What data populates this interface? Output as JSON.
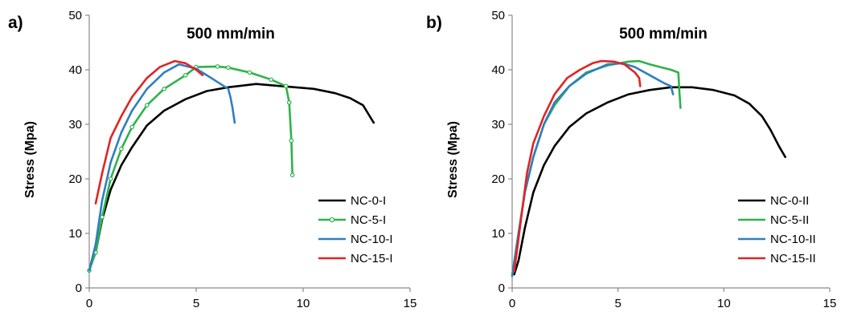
{
  "chart_data": [
    {
      "type": "line",
      "panel_label": "a)",
      "title": "500 mm/min",
      "xlabel": "",
      "ylabel": "Stress (Mpa)",
      "xlim": [
        0,
        15
      ],
      "ylim": [
        0,
        50
      ],
      "xticks": [
        0,
        5,
        10,
        15
      ],
      "yticks": [
        0,
        10,
        20,
        30,
        40,
        50
      ],
      "grid": false,
      "legend_position": "bottom-right",
      "series": [
        {
          "name": "NC-0-I",
          "color": "#000000",
          "marker": "none",
          "x": [
            0.3,
            0.6,
            1.0,
            1.5,
            2.0,
            2.7,
            3.5,
            4.5,
            5.5,
            6.5,
            7.8,
            9.0,
            10.5,
            11.5,
            12.2,
            12.8,
            13.3
          ],
          "y": [
            6.5,
            12.5,
            18,
            22.5,
            25.8,
            29.8,
            32.5,
            34.6,
            36.1,
            36.8,
            37.4,
            37.0,
            36.5,
            35.7,
            34.8,
            33.5,
            30.3
          ]
        },
        {
          "name": "NC-5-I",
          "color": "#2db34a",
          "marker": "circle",
          "x": [
            0.0,
            0.3,
            0.6,
            1.0,
            1.5,
            2.0,
            2.7,
            3.5,
            4.5,
            5.0,
            6.0,
            6.5,
            7.5,
            8.5,
            9.2,
            9.35,
            9.45,
            9.5
          ],
          "y": [
            3.2,
            6.5,
            13,
            20,
            25.5,
            29.5,
            33.5,
            36.5,
            39.0,
            40.5,
            40.6,
            40.4,
            39.5,
            38.2,
            37.0,
            34.0,
            27.0,
            20.7
          ]
        },
        {
          "name": "NC-10-I",
          "color": "#2e7fc0",
          "marker": "none",
          "x": [
            0.0,
            0.3,
            0.6,
            1.0,
            1.5,
            2.0,
            2.7,
            3.5,
            4.2,
            5.0,
            5.7,
            6.5,
            6.6,
            6.7,
            6.8
          ],
          "y": [
            3.2,
            8.0,
            16,
            23,
            28.5,
            32.5,
            36.5,
            39.5,
            41.0,
            40.2,
            38.5,
            36.5,
            35.0,
            33.0,
            30.3
          ]
        },
        {
          "name": "NC-15-I",
          "color": "#e02424",
          "marker": "none",
          "x": [
            0.3,
            0.6,
            1.0,
            1.5,
            2.0,
            2.7,
            3.3,
            4.0,
            4.5,
            5.0,
            5.3
          ],
          "y": [
            15.5,
            21,
            27.5,
            31.5,
            35.0,
            38.5,
            40.5,
            41.6,
            41.2,
            40.0,
            39.0
          ]
        }
      ]
    },
    {
      "type": "line",
      "panel_label": "b)",
      "title": "500 mm/min",
      "xlabel": "",
      "ylabel": "Stress (Mpa)",
      "xlim": [
        0,
        15
      ],
      "ylim": [
        0,
        50
      ],
      "xticks": [
        0,
        5,
        10,
        15
      ],
      "yticks": [
        0,
        10,
        20,
        30,
        40,
        50
      ],
      "grid": false,
      "legend_position": "bottom-right",
      "series": [
        {
          "name": "NC-0-II",
          "color": "#000000",
          "marker": "none",
          "x": [
            0.1,
            0.3,
            0.6,
            1.0,
            1.5,
            2.0,
            2.7,
            3.5,
            4.5,
            5.5,
            6.5,
            7.5,
            8.5,
            9.5,
            10.5,
            11.2,
            11.8,
            12.2,
            12.6,
            12.9
          ],
          "y": [
            2.5,
            5.0,
            11.0,
            17.5,
            22.5,
            26.0,
            29.5,
            32.0,
            34.0,
            35.5,
            36.3,
            36.8,
            36.8,
            36.3,
            35.3,
            33.8,
            31.5,
            29.0,
            26.0,
            24.0
          ]
        },
        {
          "name": "NC-5-II",
          "color": "#2db34a",
          "marker": "none",
          "x": [
            0.0,
            0.3,
            0.6,
            1.0,
            1.5,
            2.0,
            2.7,
            3.5,
            4.5,
            5.5,
            6.0,
            6.5,
            7.0,
            7.5,
            7.85,
            7.9,
            7.95
          ],
          "y": [
            2.2,
            10.0,
            17.5,
            24.0,
            30.0,
            33.5,
            37.0,
            39.5,
            40.8,
            41.5,
            41.6,
            41.0,
            40.5,
            40.0,
            39.5,
            36.0,
            33.0
          ]
        },
        {
          "name": "NC-10-II",
          "color": "#2e7fc0",
          "marker": "none",
          "x": [
            0.0,
            0.3,
            0.6,
            1.0,
            1.5,
            2.0,
            2.7,
            3.5,
            4.5,
            5.2,
            5.8,
            6.5,
            7.2,
            7.5,
            7.6
          ],
          "y": [
            2.2,
            10.0,
            17.5,
            24.0,
            30.0,
            34.0,
            37.0,
            39.3,
            41.0,
            41.2,
            40.5,
            39.0,
            37.5,
            37.0,
            35.5
          ]
        },
        {
          "name": "NC-15-II",
          "color": "#e02424",
          "marker": "none",
          "x": [
            0.1,
            0.4,
            0.7,
            1.0,
            1.5,
            2.0,
            2.6,
            3.2,
            3.8,
            4.2,
            4.8,
            5.3,
            5.8,
            6.0,
            6.05
          ],
          "y": [
            3.0,
            12.0,
            21.0,
            26.5,
            31.5,
            35.5,
            38.5,
            40.0,
            41.2,
            41.6,
            41.5,
            41.0,
            39.5,
            38.5,
            37.0
          ]
        }
      ]
    }
  ]
}
